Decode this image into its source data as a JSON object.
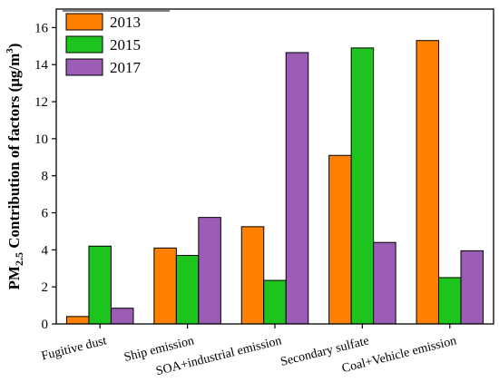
{
  "chart_data": {
    "type": "bar",
    "title": "",
    "xlabel": "",
    "ylabel": {
      "prefix": "PM",
      "sub": "2.5",
      "middle": " Contribution of factors (μg/m",
      "sup": "3",
      "suffix": ")"
    },
    "ylim": [
      0,
      17
    ],
    "yticks": [
      0,
      2,
      4,
      6,
      8,
      10,
      12,
      14,
      16
    ],
    "categories": [
      "Fugitive dust",
      "Ship emission",
      "SOA+industrial emission",
      "Secondary sulfate",
      "Coal+Vehicle emission"
    ],
    "series": [
      {
        "name": "2013",
        "color": "#ff8000",
        "values": [
          0.4,
          4.1,
          5.25,
          9.1,
          15.3
        ]
      },
      {
        "name": "2015",
        "color": "#1ec41e",
        "values": [
          4.2,
          3.7,
          2.35,
          14.9,
          2.5
        ]
      },
      {
        "name": "2017",
        "color": "#9a5cb4",
        "values": [
          0.85,
          5.75,
          14.65,
          4.4,
          3.95
        ]
      }
    ],
    "legend_position": "top-left",
    "grid": false
  }
}
